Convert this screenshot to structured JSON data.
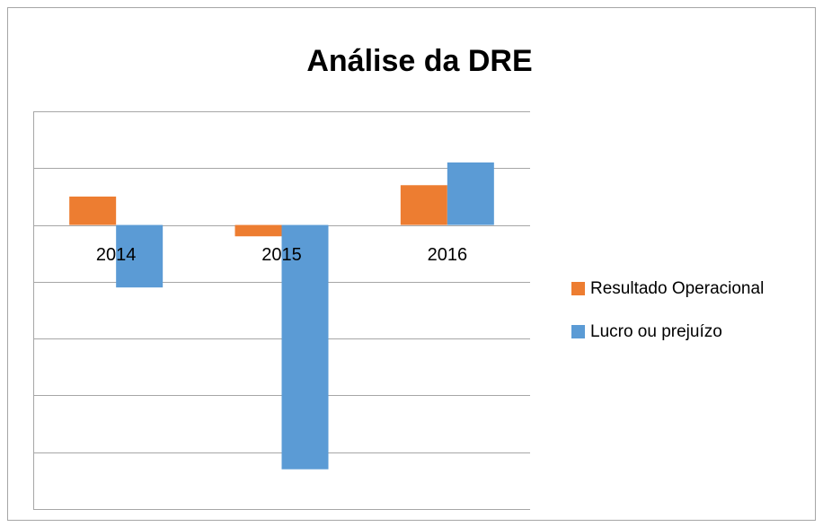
{
  "chart_data": {
    "type": "bar",
    "title": "Análise da DRE",
    "categories": [
      "2014",
      "2015",
      "2016"
    ],
    "series": [
      {
        "name": "Resultado Operacional",
        "color": "#ed7d31",
        "values": [
          0.5,
          -0.2,
          0.7
        ]
      },
      {
        "name": "Lucro ou prejuízo",
        "color": "#5b9bd5",
        "values": [
          -1.1,
          -4.3,
          1.1
        ]
      }
    ],
    "ylim": [
      -5,
      2
    ],
    "yticks": [
      -5,
      -4,
      -3,
      -2,
      -1,
      0,
      1,
      2
    ],
    "grid": true,
    "legend": "right"
  }
}
